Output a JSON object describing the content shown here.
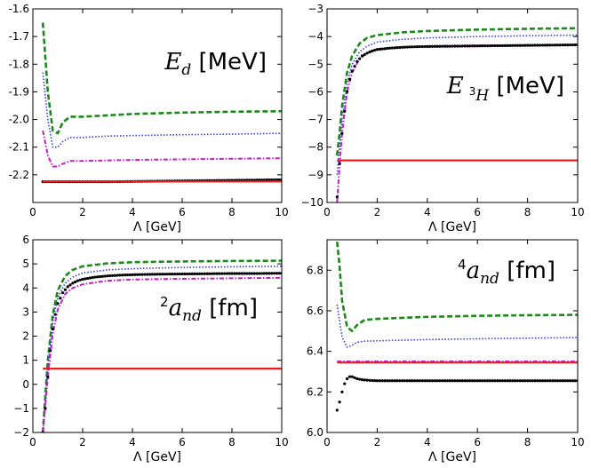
{
  "figure": {
    "series_styles": [
      {
        "name": "green dashed",
        "color": "#1a8a1a",
        "dash": "6,3",
        "width": 2.6,
        "kind": "line"
      },
      {
        "name": "blue dotted",
        "color": "#3a3aee",
        "dash": "1.5,2",
        "width": 1.6,
        "kind": "line"
      },
      {
        "name": "magenta dash-dot",
        "color": "#c21ec2",
        "dash": "5,2,1.5,2",
        "width": 2.0,
        "kind": "line"
      },
      {
        "name": "black dots",
        "color": "#000000",
        "dash": "",
        "width": 0,
        "kind": "dots"
      },
      {
        "name": "red solid",
        "color": "#ee1c1c",
        "dash": "",
        "width": 2.2,
        "kind": "line"
      }
    ]
  },
  "chart_data": [
    {
      "type": "line",
      "panel": "top-left",
      "title_math": "E",
      "title_sub": "d",
      "title_sup": "",
      "title_unit": "[MeV]",
      "xlabel": "Λ [GeV]",
      "ylabel": "",
      "xlim": [
        0,
        10
      ],
      "ylim": [
        -2.3,
        -1.6
      ],
      "xticks": [
        0,
        2,
        4,
        6,
        8,
        10
      ],
      "yticks": [
        -2.2,
        -2.1,
        -2.0,
        -1.9,
        -1.8,
        -1.7,
        -1.6
      ],
      "xtick_labels": [
        "0",
        "2",
        "4",
        "6",
        "8",
        "10"
      ],
      "ytick_labels": [
        "-2.2",
        "-2.1",
        "-2.0",
        "-1.9",
        "-1.8",
        "-1.7",
        "-1.6"
      ],
      "series": [
        {
          "name": "green dashed",
          "x": [
            0.4,
            0.6,
            0.8,
            1.0,
            1.2,
            1.5,
            2,
            3,
            4,
            6,
            8,
            10
          ],
          "y": [
            -1.65,
            -1.9,
            -2.04,
            -2.05,
            -2.01,
            -1.99,
            -1.99,
            -1.985,
            -1.98,
            -1.975,
            -1.972,
            -1.97
          ]
        },
        {
          "name": "blue dotted",
          "x": [
            0.4,
            0.6,
            0.8,
            1.0,
            1.2,
            1.5,
            2,
            3,
            4,
            6,
            8,
            10
          ],
          "y": [
            -1.83,
            -2.0,
            -2.1,
            -2.1,
            -2.08,
            -2.065,
            -2.065,
            -2.06,
            -2.058,
            -2.055,
            -2.053,
            -2.05
          ]
        },
        {
          "name": "magenta dash-dot",
          "x": [
            0.4,
            0.6,
            0.8,
            1.0,
            1.2,
            1.5,
            2,
            3,
            4,
            6,
            8,
            10
          ],
          "y": [
            -2.04,
            -2.13,
            -2.17,
            -2.17,
            -2.16,
            -2.15,
            -2.15,
            -2.148,
            -2.146,
            -2.144,
            -2.142,
            -2.14
          ]
        },
        {
          "name": "black dots",
          "x": [
            0.4,
            0.8,
            1.2,
            2,
            3,
            4,
            5,
            6,
            7,
            8,
            9,
            10
          ],
          "y": [
            -2.225,
            -2.225,
            -2.225,
            -2.225,
            -2.225,
            -2.224,
            -2.223,
            -2.222,
            -2.221,
            -2.22,
            -2.219,
            -2.218
          ]
        },
        {
          "name": "red solid",
          "x": [
            0.4,
            10
          ],
          "y": [
            -2.224,
            -2.224
          ]
        }
      ]
    },
    {
      "type": "line",
      "panel": "top-right",
      "title_math": "E",
      "title_sub": "H",
      "title_sup": "3",
      "title_unit": "[MeV]",
      "xlabel": "Λ [GeV]",
      "ylabel": "",
      "xlim": [
        0,
        10
      ],
      "ylim": [
        -10,
        -3
      ],
      "xticks": [
        0,
        2,
        4,
        6,
        8,
        10
      ],
      "yticks": [
        -10,
        -9,
        -8,
        -7,
        -6,
        -5,
        -4,
        -3
      ],
      "xtick_labels": [
        "0",
        "2",
        "4",
        "6",
        "8",
        "10"
      ],
      "ytick_labels": [
        "−10",
        "−9",
        "−8",
        "−7",
        "−6",
        "−5",
        "−4",
        "−3"
      ],
      "series": [
        {
          "name": "green dashed",
          "x": [
            0.4,
            0.5,
            0.6,
            0.8,
            1.0,
            1.3,
            1.6,
            2,
            3,
            4,
            6,
            8,
            10
          ],
          "y": [
            -8.3,
            -7.5,
            -6.5,
            -5.3,
            -4.7,
            -4.25,
            -4.05,
            -3.95,
            -3.85,
            -3.8,
            -3.75,
            -3.72,
            -3.7
          ]
        },
        {
          "name": "blue dotted",
          "x": [
            0.4,
            0.5,
            0.6,
            0.8,
            1.0,
            1.3,
            1.6,
            2,
            3,
            4,
            6,
            8,
            10
          ],
          "y": [
            -9.0,
            -8.0,
            -7.0,
            -5.7,
            -5.0,
            -4.55,
            -4.35,
            -4.2,
            -4.1,
            -4.05,
            -4.0,
            -3.97,
            -3.95
          ]
        },
        {
          "name": "magenta dash-dot",
          "x": [
            0.4,
            0.5,
            0.6,
            0.8,
            1.0,
            1.3,
            1.6,
            2,
            3,
            4,
            6,
            8,
            10
          ],
          "y": [
            -10.0,
            -8.7,
            -7.5,
            -6.0,
            -5.3,
            -4.8,
            -4.6,
            -4.45,
            -4.38,
            -4.35,
            -4.32,
            -4.31,
            -4.3
          ]
        },
        {
          "name": "black dots",
          "x": [
            0.4,
            0.5,
            0.6,
            0.7,
            0.8,
            0.9,
            1.0,
            1.2,
            1.4,
            1.6,
            1.8,
            2.0,
            2.5,
            3,
            3.5,
            4,
            5,
            6,
            7,
            8,
            9,
            10
          ],
          "y": [
            -9.8,
            -8.6,
            -7.5,
            -6.7,
            -6.0,
            -5.55,
            -5.25,
            -4.9,
            -4.7,
            -4.6,
            -4.52,
            -4.47,
            -4.42,
            -4.39,
            -4.37,
            -4.36,
            -4.35,
            -4.34,
            -4.33,
            -4.32,
            -4.31,
            -4.3
          ]
        },
        {
          "name": "red solid",
          "x": [
            0.4,
            10
          ],
          "y": [
            -8.48,
            -8.48
          ]
        }
      ]
    },
    {
      "type": "line",
      "panel": "bottom-left",
      "title_math": "a",
      "title_sub": "nd",
      "title_sup": "2",
      "title_unit": "[fm]",
      "xlabel": "Λ [GeV]",
      "ylabel": "",
      "xlim": [
        0,
        10
      ],
      "ylim": [
        -2,
        6
      ],
      "xticks": [
        0,
        2,
        4,
        6,
        8,
        10
      ],
      "yticks": [
        -2,
        -1,
        0,
        1,
        2,
        3,
        4,
        5,
        6
      ],
      "xtick_labels": [
        "0",
        "2",
        "4",
        "6",
        "8",
        "10"
      ],
      "ytick_labels": [
        "−2",
        "−1",
        "0",
        "1",
        "2",
        "3",
        "4",
        "5",
        "6"
      ],
      "series": [
        {
          "name": "green dashed",
          "x": [
            0.4,
            0.5,
            0.6,
            0.8,
            1.0,
            1.3,
            1.6,
            2,
            3,
            4,
            6,
            8,
            10
          ],
          "y": [
            -2.0,
            -0.5,
            1.0,
            2.9,
            3.9,
            4.5,
            4.75,
            4.9,
            5.02,
            5.07,
            5.1,
            5.12,
            5.13
          ]
        },
        {
          "name": "blue dotted",
          "x": [
            0.4,
            0.5,
            0.6,
            0.8,
            1.0,
            1.3,
            1.6,
            2,
            3,
            4,
            6,
            8,
            10
          ],
          "y": [
            -2.0,
            -0.6,
            0.8,
            2.6,
            3.6,
            4.2,
            4.45,
            4.62,
            4.75,
            4.8,
            4.85,
            4.88,
            4.9
          ]
        },
        {
          "name": "magenta dash-dot",
          "x": [
            0.4,
            0.5,
            0.6,
            0.8,
            1.0,
            1.3,
            1.6,
            2,
            3,
            4,
            6,
            8,
            10
          ],
          "y": [
            -2.0,
            -0.9,
            0.3,
            2.1,
            3.1,
            3.75,
            4.0,
            4.15,
            4.3,
            4.35,
            4.38,
            4.4,
            4.42
          ]
        },
        {
          "name": "black dots",
          "x": [
            0.4,
            0.5,
            0.6,
            0.7,
            0.8,
            0.9,
            1.0,
            1.2,
            1.4,
            1.6,
            1.8,
            2.0,
            2.5,
            3,
            3.5,
            4,
            5,
            6,
            7,
            8,
            9,
            10
          ],
          "y": [
            -2.0,
            -1.0,
            0.3,
            1.4,
            2.3,
            2.9,
            3.35,
            3.8,
            4.05,
            4.2,
            4.3,
            4.36,
            4.45,
            4.5,
            4.53,
            4.55,
            4.57,
            4.58,
            4.59,
            4.6,
            4.6,
            4.61
          ]
        },
        {
          "name": "red solid",
          "x": [
            0.4,
            10
          ],
          "y": [
            0.65,
            0.65
          ]
        }
      ]
    },
    {
      "type": "line",
      "panel": "bottom-right",
      "title_math": "a",
      "title_sub": "nd",
      "title_sup": "4",
      "title_unit": "[fm]",
      "xlabel": "Λ [GeV]",
      "ylabel": "",
      "xlim": [
        0,
        10
      ],
      "ylim": [
        6.0,
        6.95
      ],
      "xticks": [
        0,
        2,
        4,
        6,
        8,
        10
      ],
      "yticks": [
        6.0,
        6.2,
        6.4,
        6.6,
        6.8
      ],
      "xtick_labels": [
        "0",
        "2",
        "4",
        "6",
        "8",
        "10"
      ],
      "ytick_labels": [
        "6.0",
        "6.2",
        "6.4",
        "6.6",
        "6.8"
      ],
      "series": [
        {
          "name": "green dashed",
          "x": [
            0.4,
            0.5,
            0.6,
            0.8,
            1.0,
            1.2,
            1.5,
            2,
            3,
            4,
            6,
            8,
            10
          ],
          "y": [
            6.94,
            6.82,
            6.65,
            6.52,
            6.5,
            6.53,
            6.555,
            6.56,
            6.565,
            6.57,
            6.575,
            6.578,
            6.58
          ]
        },
        {
          "name": "blue dotted",
          "x": [
            0.4,
            0.5,
            0.6,
            0.8,
            1.0,
            1.2,
            1.5,
            2,
            3,
            4,
            6,
            8,
            10
          ],
          "y": [
            6.63,
            6.55,
            6.47,
            6.42,
            6.43,
            6.445,
            6.45,
            6.452,
            6.455,
            6.458,
            6.462,
            6.465,
            6.468
          ]
        },
        {
          "name": "magenta dash-dot",
          "x": [
            0.4,
            10
          ],
          "y": [
            6.35,
            6.35
          ]
        },
        {
          "name": "black dots",
          "x": [
            0.4,
            0.5,
            0.6,
            0.7,
            0.8,
            0.9,
            1.0,
            1.1,
            1.2,
            1.4,
            1.6,
            1.8,
            2.0,
            2.5,
            3,
            3.5,
            4,
            5,
            6,
            7,
            8,
            9,
            10
          ],
          "y": [
            6.11,
            6.15,
            6.2,
            6.24,
            6.265,
            6.275,
            6.275,
            6.27,
            6.265,
            6.26,
            6.258,
            6.256,
            6.255,
            6.255,
            6.255,
            6.255,
            6.255,
            6.255,
            6.255,
            6.255,
            6.255,
            6.255,
            6.255
          ]
        },
        {
          "name": "red solid",
          "x": [
            0.4,
            10
          ],
          "y": [
            6.345,
            6.345
          ]
        }
      ]
    }
  ]
}
